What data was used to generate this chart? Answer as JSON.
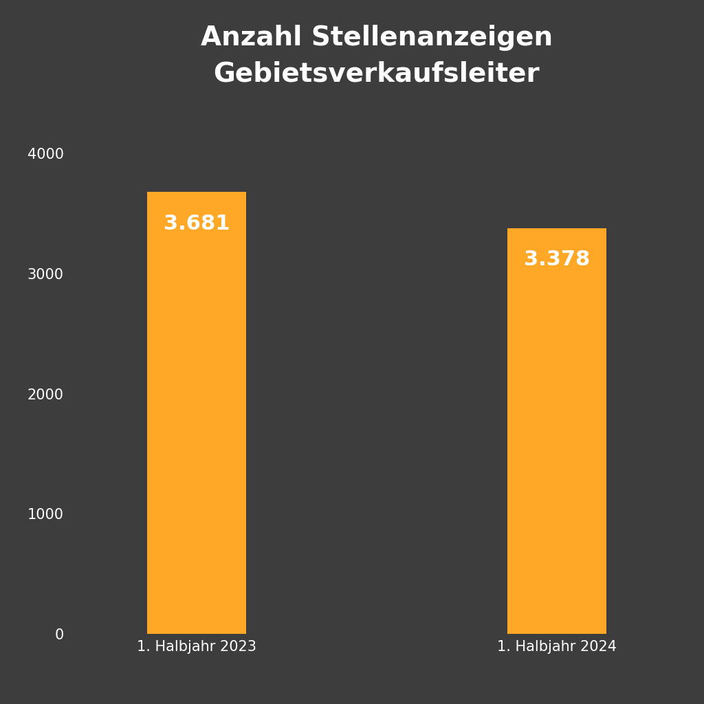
{
  "title": "Anzahl Stellenanzeigen\nGebietsverkaufsleiter",
  "categories": [
    "1. Halbjahr 2023",
    "1. Halbjahr 2024"
  ],
  "values": [
    3681,
    3378
  ],
  "labels": [
    "3.681",
    "3.378"
  ],
  "bar_color": "#FFA726",
  "background_color": "#3d3d3d",
  "text_color": "#ffffff",
  "tick_color": "#ffffff",
  "title_fontsize": 28,
  "label_fontsize": 22,
  "tick_fontsize": 15,
  "ylim": [
    0,
    4400
  ],
  "yticks": [
    0,
    1000,
    2000,
    3000,
    4000
  ],
  "bar_width": 0.55,
  "x_positions": [
    1.0,
    3.0
  ],
  "xlim": [
    0.3,
    3.7
  ]
}
